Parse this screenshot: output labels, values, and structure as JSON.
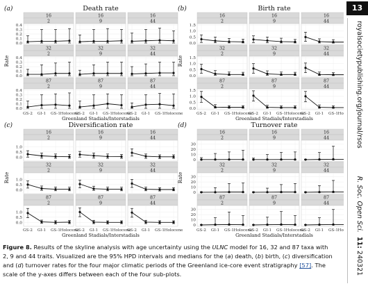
{
  "page_number": "13",
  "journal_url": "royalsocietypublishing.org/journal/rsos",
  "journal_name": "R. Soc. Open Sci.",
  "volume": "11:",
  "article_id": "240321",
  "caption": {
    "label": "Figure 8.",
    "text_1": " Results of the skyline analysis with age uncertainty using the ",
    "term": "ULNC",
    "text_2": " model for 16, 32 and 87 taxa with 2, 9 and 44 traits. Visualized are the 95% HPD intervals and medians for the (",
    "a": "a",
    "text_3": ") death, (",
    "b": "b",
    "text_4": ") birth, (",
    "c": "c",
    "text_5": ") diversification and (",
    "d": "d",
    "text_6": ") turnover rates for the four major climatic periods of the Greenland ice-core event stratigraphy ",
    "cite": "[57]",
    "text_7": ". The scale of the y-axes differs between each of the four sub-plots."
  },
  "chart_data": [
    {
      "panel": "(a)",
      "title": "Death rate",
      "type": "scatter",
      "xlabel": "Greenland Stadials/Interstadials",
      "ylabel": "Rate",
      "categories": [
        "GS-2",
        "GI-1",
        "GS-1",
        "Holocene"
      ],
      "ylim": [
        0,
        0.4
      ],
      "yticks": [
        0.0,
        0.1,
        0.2,
        0.3,
        0.4
      ],
      "facets": [
        {
          "taxa": "16",
          "traits": "2",
          "median": [
            0.03,
            0.04,
            0.04,
            0.05
          ],
          "lower": [
            0.0,
            0.0,
            0.0,
            0.0
          ],
          "upper": [
            0.16,
            0.3,
            0.3,
            0.32
          ]
        },
        {
          "taxa": "16",
          "traits": "9",
          "median": [
            0.03,
            0.04,
            0.04,
            0.05
          ],
          "lower": [
            0.0,
            0.0,
            0.0,
            0.0
          ],
          "upper": [
            0.18,
            0.3,
            0.32,
            0.3
          ]
        },
        {
          "taxa": "16",
          "traits": "44",
          "median": [
            0.04,
            0.05,
            0.06,
            0.05
          ],
          "lower": [
            0.0,
            0.0,
            0.0,
            0.0
          ],
          "upper": [
            0.22,
            0.3,
            0.33,
            0.27
          ]
        },
        {
          "taxa": "32",
          "traits": "2",
          "median": [
            0.03,
            0.03,
            0.05,
            0.05
          ],
          "lower": [
            0.0,
            0.0,
            0.0,
            0.0
          ],
          "upper": [
            0.14,
            0.24,
            0.28,
            0.3
          ]
        },
        {
          "taxa": "32",
          "traits": "9",
          "median": [
            0.03,
            0.05,
            0.05,
            0.05
          ],
          "lower": [
            0.0,
            0.0,
            0.0,
            0.0
          ],
          "upper": [
            0.12,
            0.24,
            0.3,
            0.3
          ]
        },
        {
          "taxa": "32",
          "traits": "44",
          "median": [
            0.04,
            0.05,
            0.06,
            0.06
          ],
          "lower": [
            0.0,
            0.0,
            0.0,
            0.0
          ],
          "upper": [
            0.2,
            0.26,
            0.3,
            0.3
          ]
        },
        {
          "taxa": "87",
          "traits": "2",
          "median": [
            0.03,
            0.07,
            0.08,
            0.06
          ],
          "lower": [
            0.0,
            0.0,
            0.0,
            0.0
          ],
          "upper": [
            0.16,
            0.3,
            0.32,
            0.34
          ]
        },
        {
          "taxa": "87",
          "traits": "9",
          "median": [
            0.03,
            0.06,
            0.1,
            0.07
          ],
          "lower": [
            0.0,
            0.0,
            0.0,
            0.0
          ],
          "upper": [
            0.16,
            0.3,
            0.32,
            0.3
          ]
        },
        {
          "taxa": "87",
          "traits": "44",
          "median": [
            0.03,
            0.08,
            0.09,
            0.06
          ],
          "lower": [
            0.0,
            0.0,
            0.0,
            0.0
          ],
          "upper": [
            0.12,
            0.3,
            0.33,
            0.32
          ]
        }
      ]
    },
    {
      "panel": "(b)",
      "title": "Birth rate",
      "type": "scatter",
      "xlabel": "Greenland Stadials/Interstadials",
      "ylabel": "Rate",
      "categories": [
        "GS-2",
        "GI-1",
        "GS-1",
        "Holocene"
      ],
      "ylim": [
        0,
        1.5
      ],
      "yticks": [
        0.0,
        0.5,
        1.0,
        1.5
      ],
      "facets": [
        {
          "taxa": "16",
          "traits": "2",
          "median": [
            0.32,
            0.18,
            0.12,
            0.1
          ],
          "lower": [
            0.05,
            0.02,
            0.01,
            0.01
          ],
          "upper": [
            0.68,
            0.5,
            0.38,
            0.32
          ]
        },
        {
          "taxa": "16",
          "traits": "9",
          "median": [
            0.3,
            0.2,
            0.12,
            0.1
          ],
          "lower": [
            0.04,
            0.02,
            0.01,
            0.01
          ],
          "upper": [
            0.6,
            0.5,
            0.4,
            0.3
          ]
        },
        {
          "taxa": "16",
          "traits": "44",
          "median": [
            0.5,
            0.12,
            0.08,
            0.08
          ],
          "lower": [
            0.14,
            0.01,
            0.0,
            0.0
          ],
          "upper": [
            0.9,
            0.35,
            0.28,
            0.28
          ]
        },
        {
          "taxa": "32",
          "traits": "2",
          "median": [
            0.55,
            0.15,
            0.1,
            0.1
          ],
          "lower": [
            0.2,
            0.04,
            0.02,
            0.02
          ],
          "upper": [
            0.95,
            0.42,
            0.3,
            0.28
          ]
        },
        {
          "taxa": "32",
          "traits": "9",
          "median": [
            0.6,
            0.15,
            0.1,
            0.1
          ],
          "lower": [
            0.2,
            0.04,
            0.02,
            0.02
          ],
          "upper": [
            1.0,
            0.4,
            0.3,
            0.28
          ]
        },
        {
          "taxa": "32",
          "traits": "44",
          "median": [
            0.65,
            0.1,
            0.08,
            0.08
          ],
          "lower": [
            0.25,
            0.02,
            0.01,
            0.01
          ],
          "upper": [
            1.05,
            0.3,
            0.25,
            0.25
          ]
        },
        {
          "taxa": "87",
          "traits": "2",
          "median": [
            0.95,
            0.1,
            0.08,
            0.08
          ],
          "lower": [
            0.5,
            0.02,
            0.01,
            0.01
          ],
          "upper": [
            1.4,
            0.3,
            0.22,
            0.22
          ]
        },
        {
          "taxa": "87",
          "traits": "9",
          "median": [
            1.05,
            0.08,
            0.06,
            0.06
          ],
          "lower": [
            0.6,
            0.01,
            0.01,
            0.01
          ],
          "upper": [
            1.45,
            0.25,
            0.2,
            0.2
          ]
        },
        {
          "taxa": "87",
          "traits": "44",
          "median": [
            1.0,
            0.08,
            0.06,
            0.06
          ],
          "lower": [
            0.55,
            0.01,
            0.01,
            0.01
          ],
          "upper": [
            1.4,
            0.28,
            0.2,
            0.2
          ]
        }
      ]
    },
    {
      "panel": "(c)",
      "title": "Diversification rate",
      "type": "scatter",
      "xlabel": "Greenland Stadials/Interstadials",
      "ylabel": "Rate",
      "categories": [
        "GS-2",
        "GI-1",
        "GS-1",
        "Holocene"
      ],
      "ylim": [
        -0.25,
        1.5
      ],
      "yticks": [
        0.0,
        0.5,
        1.0
      ],
      "facets": [
        {
          "taxa": "16",
          "traits": "2",
          "median": [
            0.28,
            0.12,
            0.06,
            0.04
          ],
          "lower": [
            0.0,
            -0.1,
            -0.12,
            -0.12
          ],
          "upper": [
            0.62,
            0.4,
            0.3,
            0.26
          ]
        },
        {
          "taxa": "16",
          "traits": "9",
          "median": [
            0.25,
            0.14,
            0.06,
            0.05
          ],
          "lower": [
            0.0,
            -0.1,
            -0.12,
            -0.12
          ],
          "upper": [
            0.55,
            0.4,
            0.3,
            0.26
          ]
        },
        {
          "taxa": "16",
          "traits": "44",
          "median": [
            0.42,
            0.08,
            0.03,
            0.03
          ],
          "lower": [
            0.1,
            -0.12,
            -0.14,
            -0.12
          ],
          "upper": [
            0.8,
            0.3,
            0.22,
            0.22
          ]
        },
        {
          "taxa": "32",
          "traits": "2",
          "median": [
            0.5,
            0.12,
            0.05,
            0.05
          ],
          "lower": [
            0.16,
            -0.06,
            -0.1,
            -0.1
          ],
          "upper": [
            0.85,
            0.36,
            0.26,
            0.24
          ]
        },
        {
          "taxa": "32",
          "traits": "9",
          "median": [
            0.55,
            0.1,
            0.05,
            0.05
          ],
          "lower": [
            0.18,
            -0.06,
            -0.1,
            -0.1
          ],
          "upper": [
            0.92,
            0.34,
            0.25,
            0.24
          ]
        },
        {
          "taxa": "32",
          "traits": "44",
          "median": [
            0.6,
            0.05,
            0.02,
            0.02
          ],
          "lower": [
            0.22,
            -0.1,
            -0.12,
            -0.1
          ],
          "upper": [
            1.0,
            0.25,
            0.2,
            0.2
          ]
        },
        {
          "taxa": "87",
          "traits": "2",
          "median": [
            0.9,
            0.05,
            0.0,
            0.02
          ],
          "lower": [
            0.45,
            -0.1,
            -0.14,
            -0.12
          ],
          "upper": [
            1.35,
            0.22,
            0.16,
            0.18
          ]
        },
        {
          "taxa": "87",
          "traits": "9",
          "median": [
            1.0,
            0.02,
            0.0,
            0.0
          ],
          "lower": [
            0.55,
            -0.12,
            -0.16,
            -0.12
          ],
          "upper": [
            1.4,
            0.2,
            0.15,
            0.15
          ]
        },
        {
          "taxa": "87",
          "traits": "44",
          "median": [
            0.95,
            0.02,
            0.0,
            0.0
          ],
          "lower": [
            0.5,
            -0.12,
            -0.15,
            -0.12
          ],
          "upper": [
            1.35,
            0.2,
            0.16,
            0.15
          ]
        }
      ]
    },
    {
      "panel": "(d)",
      "title": "Turnover rate",
      "type": "scatter",
      "xlabel": "Greenland Stadials/Interstadials",
      "ylabel": "Rate",
      "categories": [
        "GS-2",
        "GI-1",
        "GS-1",
        "Holocene"
      ],
      "ylim": [
        0,
        35
      ],
      "yticks": [
        0,
        10,
        20,
        30
      ],
      "facets": [
        {
          "taxa": "16",
          "traits": "2",
          "median": [
            0.2,
            0.3,
            0.4,
            0.4
          ],
          "lower": [
            0.0,
            0.0,
            0.0,
            0.0
          ],
          "upper": [
            4,
            12,
            15,
            18
          ]
        },
        {
          "taxa": "16",
          "traits": "9",
          "median": [
            0.2,
            0.3,
            0.4,
            0.4
          ],
          "lower": [
            0.0,
            0.0,
            0.0,
            0.0
          ],
          "upper": [
            3,
            10,
            14,
            15
          ]
        },
        {
          "taxa": "16",
          "traits": "44",
          "median": [
            0.1,
            0.5,
            0.8,
            0.6
          ],
          "lower": [
            0.0,
            0.0,
            0.0,
            0.0
          ],
          "upper": [
            1,
            14,
            26,
            15
          ]
        },
        {
          "taxa": "32",
          "traits": "2",
          "median": [
            0.1,
            0.2,
            0.5,
            0.5
          ],
          "lower": [
            0.0,
            0.0,
            0.0,
            0.0
          ],
          "upper": [
            1,
            9,
            17,
            18
          ]
        },
        {
          "taxa": "32",
          "traits": "9",
          "median": [
            0.1,
            0.3,
            0.5,
            0.5
          ],
          "lower": [
            0.0,
            0.0,
            0.0,
            0.0
          ],
          "upper": [
            1,
            8,
            15,
            17
          ]
        },
        {
          "taxa": "32",
          "traits": "44",
          "median": [
            0.1,
            0.5,
            0.8,
            0.8
          ],
          "lower": [
            0.0,
            0.0,
            0.0,
            0.0
          ],
          "upper": [
            1,
            13,
            23,
            20
          ]
        },
        {
          "taxa": "87",
          "traits": "2",
          "median": [
            0.0,
            0.5,
            0.8,
            0.5
          ],
          "lower": [
            0.0,
            0.0,
            0.0,
            0.0
          ],
          "upper": [
            0.5,
            14,
            25,
            18
          ]
        },
        {
          "taxa": "87",
          "traits": "9",
          "median": [
            0.0,
            0.5,
            0.8,
            0.5
          ],
          "lower": [
            0.0,
            0.0,
            0.0,
            0.0
          ],
          "upper": [
            0.5,
            15,
            26,
            18
          ]
        },
        {
          "taxa": "87",
          "traits": "44",
          "median": [
            0.0,
            0.5,
            0.8,
            0.6
          ],
          "lower": [
            0.0,
            0.0,
            0.0,
            0.0
          ],
          "upper": [
            0.5,
            14,
            30,
            20
          ]
        }
      ]
    }
  ]
}
